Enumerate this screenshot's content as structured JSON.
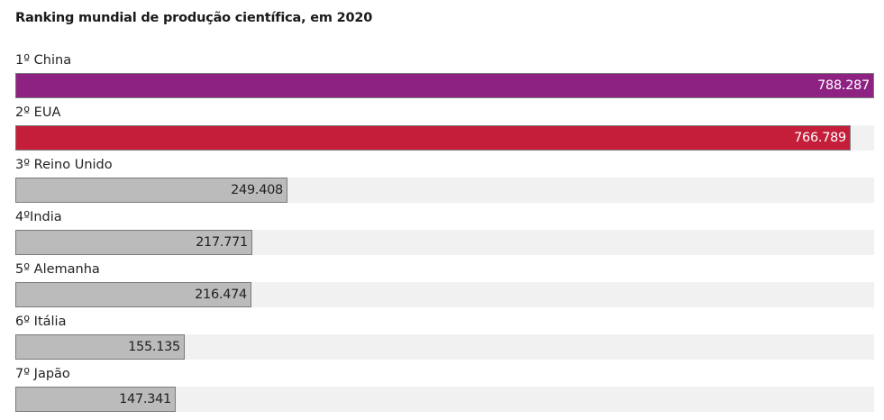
{
  "chart_data": {
    "type": "bar",
    "orientation": "horizontal",
    "title": "Ranking mundial de produção científica, em 2020",
    "xlabel": "",
    "ylabel": "",
    "xlim": [
      0,
      788287
    ],
    "grid": false,
    "categories": [
      "1º China",
      "2º EUA",
      "3º Reino Unido",
      "4ºIndia",
      "5º Alemanha",
      "6º Itália",
      "7º Japão"
    ],
    "values": [
      788287,
      766789,
      249408,
      217771,
      216474,
      155135,
      147341
    ],
    "value_labels": [
      "788.287",
      "766.789",
      "249.408",
      "217.771",
      "216.474",
      "155.135",
      "147.341"
    ],
    "colors": [
      "#8e2282",
      "#c41e3a",
      "#bbbbbb",
      "#bbbbbb",
      "#bbbbbb",
      "#bbbbbb",
      "#bbbbbb"
    ],
    "value_text_colors": [
      "#ffffff",
      "#ffffff",
      "#222222",
      "#222222",
      "#222222",
      "#222222",
      "#222222"
    ],
    "track_color": "#f1f1f1"
  }
}
